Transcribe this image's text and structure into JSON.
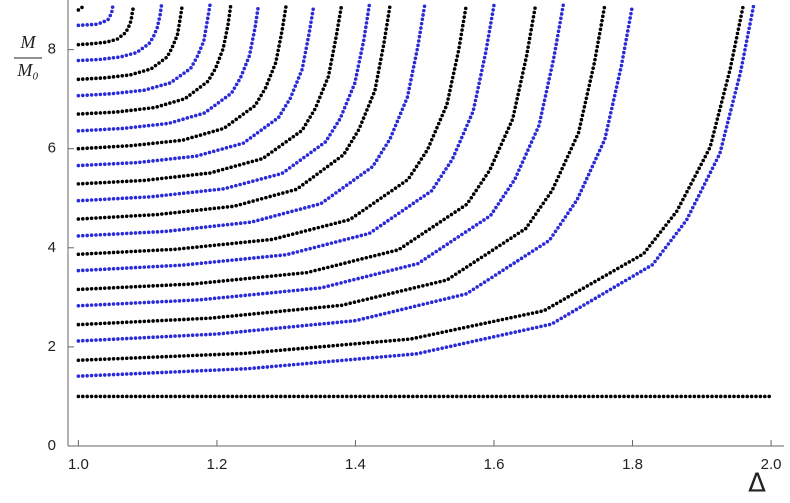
{
  "chart_data": {
    "type": "line",
    "xlabel": "Δ",
    "ylabel": {
      "numerator": "M",
      "denominator": "M₀"
    },
    "xlim": [
      0.985,
      2.01
    ],
    "ylim": [
      0,
      8.9
    ],
    "xticks": [
      {
        "value": 1.0,
        "label": "1.0"
      },
      {
        "value": 1.2,
        "label": "1.2"
      },
      {
        "value": 1.4,
        "label": "1.4"
      },
      {
        "value": 1.6,
        "label": "1.6"
      },
      {
        "value": 1.8,
        "label": "1.8"
      },
      {
        "value": 2.0,
        "label": "2.0"
      }
    ],
    "yticks": [
      0,
      2,
      4,
      6,
      8
    ],
    "series": [
      {
        "color": "#000000",
        "x": [
          1.0,
          1.05,
          1.1,
          1.15,
          1.2,
          1.25,
          1.3,
          1.35,
          1.4,
          1.45,
          1.5,
          1.55,
          1.6,
          1.65,
          1.7,
          1.75,
          1.8,
          1.85,
          1.9,
          1.95,
          2.0
        ],
        "values": [
          1,
          1,
          1,
          1,
          1,
          1,
          1,
          1,
          1,
          1,
          1,
          1,
          1,
          1,
          1,
          1,
          1,
          1,
          1,
          1,
          1
        ]
      },
      {
        "color": "#000000",
        "x": [
          1,
          1.24,
          1.48,
          1.672,
          1.816,
          1.864,
          1.912,
          1.941,
          1.96
        ],
        "values": [
          1.73,
          1.87,
          2.16,
          2.73,
          3.88,
          4.74,
          6.03,
          7.61,
          8.9
        ]
      },
      {
        "color": "#000000",
        "x": [
          1,
          1.19,
          1.38,
          1.532,
          1.646,
          1.684,
          1.722,
          1.745,
          1.76
        ],
        "values": [
          2.45,
          2.58,
          2.84,
          3.35,
          4.39,
          5.16,
          6.32,
          7.74,
          8.9
        ]
      },
      {
        "color": "#000000",
        "x": [
          1,
          1.165,
          1.33,
          1.462,
          1.561,
          1.594,
          1.627,
          1.647,
          1.66
        ],
        "values": [
          3.16,
          3.27,
          3.5,
          3.96,
          4.88,
          5.57,
          6.6,
          7.87,
          8.9
        ]
      },
      {
        "color": "#000000",
        "x": [
          1,
          1.14,
          1.28,
          1.392,
          1.476,
          1.504,
          1.532,
          1.549,
          1.56
        ],
        "values": [
          3.87,
          3.97,
          4.17,
          4.57,
          5.38,
          5.98,
          6.89,
          7.99,
          8.9
        ]
      },
      {
        "color": "#000000",
        "x": [
          1,
          1.113,
          1.225,
          1.315,
          1.383,
          1.405,
          1.428,
          1.441,
          1.45
        ],
        "values": [
          4.58,
          4.67,
          4.84,
          5.18,
          5.88,
          6.39,
          7.17,
          8.12,
          8.9
        ]
      },
      {
        "color": "#000000",
        "x": [
          1,
          1.095,
          1.19,
          1.266,
          1.323,
          1.342,
          1.361,
          1.372,
          1.38
        ],
        "values": [
          5.29,
          5.36,
          5.51,
          5.8,
          6.37,
          6.81,
          7.46,
          8.25,
          8.9
        ]
      },
      {
        "color": "#000000",
        "x": [
          1,
          1.075,
          1.15,
          1.21,
          1.255,
          1.27,
          1.285,
          1.294,
          1.3
        ],
        "values": [
          6.0,
          6.06,
          6.17,
          6.41,
          6.87,
          7.22,
          7.74,
          8.38,
          8.9
        ]
      },
      {
        "color": "#000000",
        "x": [
          1,
          1.055,
          1.11,
          1.154,
          1.187,
          1.198,
          1.209,
          1.216,
          1.22
        ],
        "values": [
          6.7,
          6.74,
          6.83,
          7.01,
          7.36,
          7.62,
          8.02,
          8.5,
          8.9
        ]
      },
      {
        "color": "#000000",
        "x": [
          1,
          1.038,
          1.075,
          1.105,
          1.128,
          1.135,
          1.143,
          1.147,
          1.15
        ],
        "values": [
          7.4,
          7.43,
          7.49,
          7.61,
          7.85,
          8.03,
          8.3,
          8.63,
          8.9
        ]
      },
      {
        "color": "#000000",
        "x": [
          1,
          1.02,
          1.04,
          1.056,
          1.068,
          1.072,
          1.076,
          1.078,
          1.08
        ],
        "values": [
          8.1,
          8.12,
          8.15,
          8.21,
          8.34,
          8.44,
          8.58,
          8.76,
          8.9
        ]
      },
      {
        "color": "#000000",
        "x": [
          1,
          1.01
        ],
        "values": [
          8.8,
          8.9
        ]
      },
      {
        "color": "#2a2ad8",
        "x": [
          1,
          1.244,
          1.488,
          1.683,
          1.829,
          1.878,
          1.926,
          1.956,
          1.975
        ],
        "values": [
          1.41,
          1.56,
          1.86,
          2.46,
          3.66,
          4.56,
          5.9,
          7.55,
          8.9
        ]
      },
      {
        "color": "#2a2ad8",
        "x": [
          1,
          1.2,
          1.4,
          1.56,
          1.68,
          1.72,
          1.76,
          1.784,
          1.8
        ],
        "values": [
          2.12,
          2.26,
          2.53,
          3.07,
          4.15,
          4.97,
          6.19,
          7.68,
          8.9
        ]
      },
      {
        "color": "#2a2ad8",
        "x": [
          1,
          1.175,
          1.35,
          1.49,
          1.595,
          1.63,
          1.665,
          1.686,
          1.7
        ],
        "values": [
          2.83,
          2.95,
          3.19,
          3.68,
          4.65,
          5.38,
          6.47,
          7.81,
          8.9
        ]
      },
      {
        "color": "#2a2ad8",
        "x": [
          1,
          1.15,
          1.3,
          1.42,
          1.51,
          1.54,
          1.57,
          1.588,
          1.6
        ],
        "values": [
          3.54,
          3.65,
          3.86,
          4.29,
          5.15,
          5.79,
          6.76,
          7.94,
          8.9
        ]
      },
      {
        "color": "#2a2ad8",
        "x": [
          1,
          1.125,
          1.25,
          1.35,
          1.425,
          1.45,
          1.475,
          1.49,
          1.5
        ],
        "values": [
          4.24,
          4.33,
          4.52,
          4.89,
          5.64,
          6.2,
          7.04,
          8.06,
          8.9
        ]
      },
      {
        "color": "#2a2ad8",
        "x": [
          1,
          1.105,
          1.21,
          1.294,
          1.357,
          1.378,
          1.399,
          1.412,
          1.42
        ],
        "values": [
          4.95,
          5.03,
          5.19,
          5.5,
          6.14,
          6.61,
          7.32,
          8.19,
          8.9
        ]
      },
      {
        "color": "#2a2ad8",
        "x": [
          1,
          1.085,
          1.17,
          1.238,
          1.289,
          1.306,
          1.323,
          1.333,
          1.34
        ],
        "values": [
          5.66,
          5.72,
          5.85,
          6.11,
          6.63,
          7.02,
          7.6,
          8.32,
          8.9
        ]
      },
      {
        "color": "#2a2ad8",
        "x": [
          1,
          1.065,
          1.13,
          1.182,
          1.221,
          1.234,
          1.247,
          1.255,
          1.26
        ],
        "values": [
          6.36,
          6.41,
          6.51,
          6.72,
          7.12,
          7.43,
          7.88,
          8.44,
          8.9
        ]
      },
      {
        "color": "#2a2ad8",
        "x": [
          1,
          1.048,
          1.095,
          1.133,
          1.162,
          1.171,
          1.181,
          1.186,
          1.19
        ],
        "values": [
          7.07,
          7.11,
          7.18,
          7.33,
          7.62,
          7.84,
          8.17,
          8.57,
          8.9
        ]
      },
      {
        "color": "#2a2ad8",
        "x": [
          1,
          1.03,
          1.06,
          1.084,
          1.102,
          1.108,
          1.114,
          1.118,
          1.12
        ],
        "values": [
          7.78,
          7.8,
          7.85,
          7.94,
          8.12,
          8.25,
          8.45,
          8.7,
          8.9
        ]
      },
      {
        "color": "#2a2ad8",
        "x": [
          1,
          1.013,
          1.025,
          1.035,
          1.043,
          1.045,
          1.048,
          1.049,
          1.05
        ],
        "values": [
          8.49,
          8.5,
          8.51,
          8.55,
          8.61,
          8.66,
          8.74,
          8.83,
          8.9
        ]
      }
    ]
  }
}
